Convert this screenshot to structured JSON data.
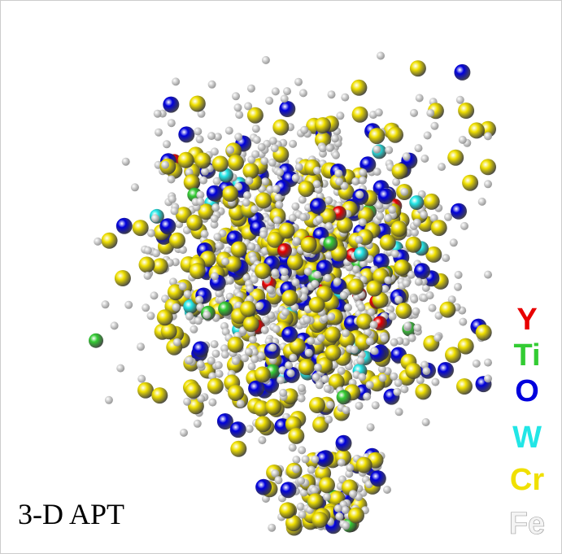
{
  "label": "3-D APT",
  "legend": [
    {
      "name": "Y",
      "color": "#e80000"
    },
    {
      "name": "Ti",
      "color": "#33cc33"
    },
    {
      "name": "O",
      "color": "#0000dd"
    },
    {
      "name": "W",
      "color": "#22e6e6"
    },
    {
      "name": "Cr",
      "color": "#f0e000"
    },
    {
      "name": "Fe",
      "color": "#d8d8d8"
    }
  ]
}
